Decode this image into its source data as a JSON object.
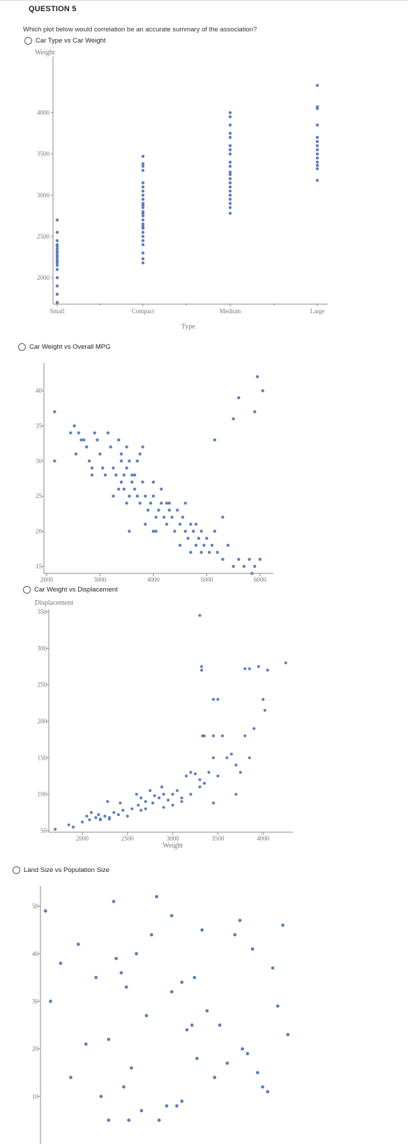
{
  "question": {
    "title": "QUESTION 5",
    "text": "Which plot below would correlation be an accurate summary of the association?"
  },
  "options": [
    {
      "label": "Car Type vs Car Weight"
    },
    {
      "label": "Car Weight vs Overall MPG"
    },
    {
      "label": "Car Weight vs Displacement"
    },
    {
      "label": "Land Size vs Population Size"
    }
  ],
  "colors": {
    "dots": "#5b7fbd",
    "axis": "#888888"
  },
  "chart_data": [
    {
      "type": "scatter",
      "xlabel": "Type",
      "ylabel": "Weight",
      "categories": [
        "Small",
        "Compact",
        "Medium",
        "Large"
      ],
      "yticks": [
        2000,
        2500,
        3000,
        3500,
        4000
      ],
      "ylim": [
        1680,
        4300
      ],
      "series": [
        {
          "category": "Small",
          "values": [
            1700,
            1800,
            1900,
            2000,
            2100,
            2150,
            2180,
            2200,
            2220,
            2250,
            2270,
            2300,
            2320,
            2350,
            2380,
            2400,
            2450,
            2550,
            2700
          ]
        },
        {
          "category": "Compact",
          "values": [
            2180,
            2230,
            2300,
            2400,
            2450,
            2500,
            2550,
            2600,
            2620,
            2650,
            2700,
            2750,
            2780,
            2800,
            2850,
            2880,
            2900,
            2950,
            3000,
            3050,
            3100,
            3150,
            3300,
            3350,
            3380,
            3470
          ]
        },
        {
          "category": "Medium",
          "values": [
            2780,
            2850,
            2900,
            2950,
            3000,
            3050,
            3100,
            3150,
            3200,
            3250,
            3280,
            3350,
            3400,
            3500,
            3550,
            3600,
            3700,
            3750,
            3850,
            3950,
            4000
          ]
        },
        {
          "category": "Large",
          "values": [
            3180,
            3320,
            3360,
            3400,
            3450,
            3500,
            3550,
            3600,
            3650,
            3700,
            3850,
            4050,
            4070,
            4330
          ]
        }
      ]
    },
    {
      "type": "scatter",
      "xlabel": "",
      "ylabel": "",
      "xticks": [
        2000,
        3000,
        4000,
        5000,
        6000
      ],
      "yticks": [
        15,
        20,
        25,
        30,
        35,
        40
      ],
      "xlim": [
        1950,
        6250
      ],
      "ylim": [
        14,
        42
      ],
      "points": [
        [
          2150,
          37
        ],
        [
          2150,
          30
        ],
        [
          2450,
          34
        ],
        [
          2520,
          35
        ],
        [
          2600,
          34
        ],
        [
          2550,
          31
        ],
        [
          2650,
          33
        ],
        [
          2700,
          33
        ],
        [
          2750,
          32
        ],
        [
          2800,
          30
        ],
        [
          2850,
          29
        ],
        [
          2850,
          28
        ],
        [
          2900,
          34
        ],
        [
          2950,
          33
        ],
        [
          3000,
          31
        ],
        [
          3050,
          29
        ],
        [
          3100,
          28
        ],
        [
          3150,
          34
        ],
        [
          3200,
          32
        ],
        [
          3250,
          29
        ],
        [
          3300,
          28
        ],
        [
          3350,
          33
        ],
        [
          3400,
          31
        ],
        [
          3450,
          28
        ],
        [
          3500,
          32
        ],
        [
          3550,
          30
        ],
        [
          3600,
          28
        ],
        [
          3250,
          25
        ],
        [
          3350,
          26
        ],
        [
          3400,
          27
        ],
        [
          3450,
          26
        ],
        [
          3500,
          24
        ],
        [
          3550,
          25
        ],
        [
          3600,
          27
        ],
        [
          3650,
          26
        ],
        [
          3700,
          25
        ],
        [
          3750,
          24
        ],
        [
          3800,
          27
        ],
        [
          3850,
          25
        ],
        [
          3900,
          23
        ],
        [
          3950,
          24
        ],
        [
          4000,
          25
        ],
        [
          4050,
          22
        ],
        [
          4100,
          23
        ],
        [
          4150,
          24
        ],
        [
          4200,
          22
        ],
        [
          4250,
          21
        ],
        [
          4300,
          23
        ],
        [
          4350,
          22
        ],
        [
          4400,
          20
        ],
        [
          4450,
          23
        ],
        [
          4500,
          21
        ],
        [
          4550,
          22
        ],
        [
          4600,
          20
        ],
        [
          4650,
          19
        ],
        [
          4700,
          21
        ],
        [
          4750,
          20
        ],
        [
          4800,
          18
        ],
        [
          4850,
          19
        ],
        [
          4900,
          20
        ],
        [
          4950,
          18
        ],
        [
          5000,
          19
        ],
        [
          5050,
          17
        ],
        [
          5100,
          18
        ],
        [
          5150,
          20
        ],
        [
          5200,
          17
        ],
        [
          5300,
          16
        ],
        [
          5400,
          18
        ],
        [
          5500,
          15
        ],
        [
          5600,
          16
        ],
        [
          5700,
          15
        ],
        [
          5800,
          16
        ],
        [
          5850,
          14
        ],
        [
          5900,
          15
        ],
        [
          6000,
          16
        ],
        [
          5150,
          33
        ],
        [
          5500,
          36
        ],
        [
          5600,
          39
        ],
        [
          5900,
          37
        ],
        [
          5950,
          42
        ],
        [
          6050,
          40
        ],
        [
          3700,
          30
        ],
        [
          3750,
          31
        ],
        [
          3800,
          32
        ],
        [
          3400,
          30
        ],
        [
          3500,
          29
        ],
        [
          3650,
          28
        ],
        [
          4000,
          27
        ],
        [
          4150,
          26
        ],
        [
          4300,
          24
        ],
        [
          4500,
          18
        ],
        [
          4700,
          17
        ],
        [
          4900,
          17
        ],
        [
          5300,
          22
        ],
        [
          4050,
          20
        ],
        [
          4000,
          20
        ],
        [
          3550,
          20
        ],
        [
          3850,
          21
        ],
        [
          4250,
          24
        ],
        [
          4600,
          24
        ],
        [
          4800,
          21
        ]
      ]
    },
    {
      "type": "scatter",
      "xlabel": "Weight",
      "ylabel": "Displacement",
      "xticks": [
        2000,
        2500,
        3000,
        3500,
        4000
      ],
      "yticks": [
        50,
        100,
        150,
        200,
        250,
        300,
        350
      ],
      "xlim": [
        1630,
        4330
      ],
      "ylim": [
        48,
        352
      ],
      "points": [
        [
          1700,
          52
        ],
        [
          1850,
          58
        ],
        [
          1900,
          55
        ],
        [
          2000,
          62
        ],
        [
          2050,
          70
        ],
        [
          2080,
          65
        ],
        [
          2100,
          75
        ],
        [
          2150,
          68
        ],
        [
          2180,
          72
        ],
        [
          2200,
          65
        ],
        [
          2250,
          70
        ],
        [
          2280,
          90
        ],
        [
          2300,
          68
        ],
        [
          2350,
          75
        ],
        [
          2400,
          72
        ],
        [
          2420,
          88
        ],
        [
          2450,
          78
        ],
        [
          2500,
          70
        ],
        [
          2550,
          80
        ],
        [
          2600,
          100
        ],
        [
          2620,
          85
        ],
        [
          2650,
          95
        ],
        [
          2700,
          90
        ],
        [
          2750,
          105
        ],
        [
          2780,
          88
        ],
        [
          2800,
          98
        ],
        [
          2850,
          95
        ],
        [
          2880,
          110
        ],
        [
          2900,
          100
        ],
        [
          2950,
          92
        ],
        [
          3000,
          100
        ],
        [
          3050,
          105
        ],
        [
          3100,
          95
        ],
        [
          3150,
          125
        ],
        [
          3200,
          130
        ],
        [
          3250,
          128
        ],
        [
          3300,
          120
        ],
        [
          3350,
          115
        ],
        [
          3400,
          130
        ],
        [
          3450,
          150
        ],
        [
          3500,
          125
        ],
        [
          3550,
          180
        ],
        [
          3600,
          150
        ],
        [
          3650,
          155
        ],
        [
          3700,
          140
        ],
        [
          3750,
          130
        ],
        [
          3800,
          180
        ],
        [
          3850,
          150
        ],
        [
          3300,
          345
        ],
        [
          3320,
          270
        ],
        [
          3320,
          275
        ],
        [
          3450,
          230
        ],
        [
          3500,
          230
        ],
        [
          3330,
          180
        ],
        [
          3350,
          180
        ],
        [
          3450,
          180
        ],
        [
          3800,
          272
        ],
        [
          3850,
          272
        ],
        [
          3950,
          275
        ],
        [
          4000,
          230
        ],
        [
          4020,
          215
        ],
        [
          4050,
          270
        ],
        [
          4250,
          280
        ],
        [
          3900,
          190
        ],
        [
          3700,
          100
        ],
        [
          3450,
          88
        ],
        [
          3300,
          110
        ],
        [
          3200,
          100
        ],
        [
          3100,
          90
        ],
        [
          3000,
          85
        ],
        [
          2900,
          82
        ],
        [
          2700,
          80
        ],
        [
          2650,
          78
        ],
        [
          2300,
          66
        ],
        [
          2200,
          66
        ]
      ]
    },
    {
      "type": "scatter",
      "xlabel": "",
      "ylabel": "",
      "yticks": [
        10,
        20,
        30,
        40,
        50
      ],
      "ylim": [
        0,
        55
      ],
      "xlim": [
        0,
        100
      ],
      "points": [
        [
          2,
          49
        ],
        [
          4,
          30
        ],
        [
          8,
          38
        ],
        [
          12,
          14
        ],
        [
          15,
          42
        ],
        [
          18,
          21
        ],
        [
          22,
          35
        ],
        [
          24,
          10
        ],
        [
          27,
          22
        ],
        [
          29,
          51
        ],
        [
          30,
          39
        ],
        [
          32,
          36
        ],
        [
          34,
          33
        ],
        [
          36,
          16
        ],
        [
          38,
          40
        ],
        [
          40,
          7
        ],
        [
          42,
          27
        ],
        [
          44,
          44
        ],
        [
          46,
          52
        ],
        [
          50,
          8
        ],
        [
          52,
          32
        ],
        [
          54,
          8
        ],
        [
          56,
          34
        ],
        [
          58,
          24
        ],
        [
          60,
          25
        ],
        [
          62,
          18
        ],
        [
          64,
          45
        ],
        [
          66,
          28
        ],
        [
          69,
          14
        ],
        [
          71,
          25
        ],
        [
          74,
          17
        ],
        [
          77,
          44
        ],
        [
          79,
          47
        ],
        [
          80,
          20
        ],
        [
          82,
          19
        ],
        [
          84,
          41
        ],
        [
          86,
          15
        ],
        [
          88,
          12
        ],
        [
          90,
          11
        ],
        [
          92,
          37
        ],
        [
          94,
          29
        ],
        [
          96,
          46
        ],
        [
          98,
          23
        ],
        [
          52,
          48
        ],
        [
          47,
          5
        ],
        [
          56,
          9
        ],
        [
          27,
          5
        ],
        [
          33,
          12
        ],
        [
          61,
          35
        ],
        [
          35,
          5
        ]
      ]
    }
  ]
}
